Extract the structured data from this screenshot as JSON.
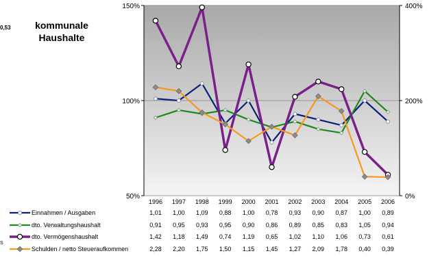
{
  "chart_data": {
    "type": "line",
    "title": "kommunale Haushalte",
    "corner_value": "0,53",
    "side_mark": "S",
    "x": [
      "1996",
      "1997",
      "1998",
      "1999",
      "2000",
      "2001",
      "2002",
      "2003",
      "2004",
      "2005",
      "2006"
    ],
    "left_axis": {
      "ticks": [
        "150%",
        "100%",
        "50%"
      ],
      "values": [
        1.5,
        1.0,
        0.5
      ],
      "ylim": [
        0.5,
        1.5
      ]
    },
    "right_axis": {
      "ticks": [
        "400%",
        "200%",
        "0%"
      ],
      "values": [
        4.0,
        2.0,
        0.0
      ],
      "ylim": [
        0.0,
        4.0
      ]
    },
    "series": [
      {
        "name": "Einnahmen  / Ausgaben",
        "axis": "left",
        "color": "#0a1f7a",
        "marker": "circle-open",
        "labels": [
          "1,01",
          "1,00",
          "1,09",
          "0,88",
          "1,00",
          "0,78",
          "0,93",
          "0,90",
          "0,87",
          "1,00",
          "0,89"
        ],
        "values": [
          1.01,
          1.0,
          1.09,
          0.88,
          1.0,
          0.78,
          0.93,
          0.9,
          0.87,
          1.0,
          0.89
        ]
      },
      {
        "name": "dto. Verwaltungshaushalt",
        "axis": "left",
        "color": "#1a8a1a",
        "marker": "diamond-open",
        "labels": [
          "0,91",
          "0,95",
          "0,93",
          "0,95",
          "0,90",
          "0,86",
          "0,89",
          "0,85",
          "0,83",
          "1,05",
          "0,94"
        ],
        "values": [
          0.91,
          0.95,
          0.93,
          0.95,
          0.9,
          0.86,
          0.89,
          0.85,
          0.83,
          1.05,
          0.94
        ]
      },
      {
        "name": "dto. Vermögenshaushalt",
        "axis": "left",
        "color": "#7b1f8a",
        "marker": "circle-open-large",
        "labels": [
          "1,42",
          "1,18",
          "1,49",
          "0,74",
          "1,19",
          "0,65",
          "1,02",
          "1,10",
          "1,06",
          "0,73",
          "0,61"
        ],
        "values": [
          1.42,
          1.18,
          1.49,
          0.74,
          1.19,
          0.65,
          1.02,
          1.1,
          1.06,
          0.73,
          0.61
        ]
      },
      {
        "name": "Schulden / netto Steueraufkommen",
        "axis": "right",
        "color": "#f59a1e",
        "marker": "diamond-grey",
        "labels": [
          "2,28",
          "2,20",
          "1,75",
          "1,50",
          "1,15",
          "1,45",
          "1,27",
          "2,09",
          "1,78",
          "0,40",
          "0,39"
        ],
        "values": [
          2.28,
          2.2,
          1.75,
          1.5,
          1.15,
          1.45,
          1.27,
          2.09,
          1.78,
          0.4,
          0.39
        ]
      }
    ]
  }
}
